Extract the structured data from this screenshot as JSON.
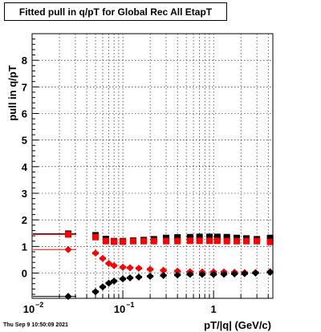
{
  "title": "Fitted pull in q/pT for Global Rec All EtapT",
  "timestamp": "Thu Sep  9 10:50:09 2021",
  "chart_data": {
    "type": "scatter",
    "xlabel": "pT/|q| (GeV/c)",
    "ylabel": "pull in q/pT",
    "xscale": "log",
    "xlim": [
      0.01,
      4.5
    ],
    "ylim": [
      -0.95,
      9.0
    ],
    "grid": true,
    "x_major_ticks": [
      0.01,
      0.1,
      1
    ],
    "x_tick_labels": [
      "10",
      "10",
      "1"
    ],
    "x_tick_exponents": [
      "−2",
      "−1",
      ""
    ],
    "y_ticks": [
      0,
      1,
      2,
      3,
      4,
      5,
      6,
      7,
      8
    ],
    "y_tick_labels": [
      "0",
      "1",
      "2",
      "3",
      "4",
      "5",
      "6",
      "7",
      "8"
    ],
    "series": [
      {
        "color": "#000000",
        "marker": "square",
        "values": [
          {
            "x": 0.025,
            "y": 1.48
          },
          {
            "x": 0.05,
            "y": 1.42
          },
          {
            "x": 0.065,
            "y": 1.28
          },
          {
            "x": 0.08,
            "y": 1.2
          },
          {
            "x": 0.1,
            "y": 1.2
          },
          {
            "x": 0.13,
            "y": 1.22
          },
          {
            "x": 0.17,
            "y": 1.24
          },
          {
            "x": 0.22,
            "y": 1.27
          },
          {
            "x": 0.3,
            "y": 1.32
          },
          {
            "x": 0.4,
            "y": 1.34
          },
          {
            "x": 0.55,
            "y": 1.35
          },
          {
            "x": 0.7,
            "y": 1.36
          },
          {
            "x": 0.9,
            "y": 1.36
          },
          {
            "x": 1.1,
            "y": 1.36
          },
          {
            "x": 1.4,
            "y": 1.35
          },
          {
            "x": 1.8,
            "y": 1.32
          },
          {
            "x": 2.3,
            "y": 1.3
          },
          {
            "x": 3.0,
            "y": 1.27
          },
          {
            "x": 4.2,
            "y": 1.32
          }
        ]
      },
      {
        "color": "#ff0000",
        "marker": "square",
        "values": [
          {
            "x": 0.025,
            "y": 1.45
          },
          {
            "x": 0.05,
            "y": 1.35
          },
          {
            "x": 0.065,
            "y": 1.2
          },
          {
            "x": 0.08,
            "y": 1.18
          },
          {
            "x": 0.1,
            "y": 1.18
          },
          {
            "x": 0.13,
            "y": 1.2
          },
          {
            "x": 0.17,
            "y": 1.2
          },
          {
            "x": 0.22,
            "y": 1.2
          },
          {
            "x": 0.3,
            "y": 1.2
          },
          {
            "x": 0.4,
            "y": 1.2
          },
          {
            "x": 0.55,
            "y": 1.21
          },
          {
            "x": 0.7,
            "y": 1.21
          },
          {
            "x": 0.9,
            "y": 1.21
          },
          {
            "x": 1.1,
            "y": 1.21
          },
          {
            "x": 1.4,
            "y": 1.2
          },
          {
            "x": 1.8,
            "y": 1.2
          },
          {
            "x": 2.3,
            "y": 1.2
          },
          {
            "x": 3.0,
            "y": 1.2
          },
          {
            "x": 4.2,
            "y": 1.17
          }
        ]
      },
      {
        "color": "#ff0000",
        "marker": "diamond",
        "values": [
          {
            "x": 0.025,
            "y": 0.88
          },
          {
            "x": 0.05,
            "y": 0.75
          },
          {
            "x": 0.06,
            "y": 0.55
          },
          {
            "x": 0.07,
            "y": 0.36
          },
          {
            "x": 0.08,
            "y": 0.28
          },
          {
            "x": 0.1,
            "y": 0.22
          },
          {
            "x": 0.12,
            "y": 0.2
          },
          {
            "x": 0.15,
            "y": 0.18
          },
          {
            "x": 0.2,
            "y": 0.14
          },
          {
            "x": 0.28,
            "y": 0.1
          },
          {
            "x": 0.4,
            "y": 0.07
          },
          {
            "x": 0.55,
            "y": 0.05
          },
          {
            "x": 0.75,
            "y": 0.04
          },
          {
            "x": 1.0,
            "y": 0.04
          },
          {
            "x": 1.3,
            "y": 0.04
          },
          {
            "x": 1.7,
            "y": 0.03
          },
          {
            "x": 2.2,
            "y": 0.02
          },
          {
            "x": 2.9,
            "y": 0.02
          },
          {
            "x": 4.2,
            "y": 0.05
          }
        ]
      },
      {
        "color": "#000000",
        "marker": "diamond",
        "values": [
          {
            "x": 0.025,
            "y": -0.88
          },
          {
            "x": 0.05,
            "y": -0.7
          },
          {
            "x": 0.06,
            "y": -0.52
          },
          {
            "x": 0.07,
            "y": -0.38
          },
          {
            "x": 0.08,
            "y": -0.3
          },
          {
            "x": 0.1,
            "y": -0.22
          },
          {
            "x": 0.12,
            "y": -0.18
          },
          {
            "x": 0.15,
            "y": -0.15
          },
          {
            "x": 0.2,
            "y": -0.12
          },
          {
            "x": 0.28,
            "y": -0.09
          },
          {
            "x": 0.4,
            "y": -0.07
          },
          {
            "x": 0.55,
            "y": -0.05
          },
          {
            "x": 0.75,
            "y": -0.05
          },
          {
            "x": 1.0,
            "y": -0.05
          },
          {
            "x": 1.3,
            "y": -0.04
          },
          {
            "x": 1.7,
            "y": -0.03
          },
          {
            "x": 2.2,
            "y": -0.02
          },
          {
            "x": 2.9,
            "y": 0.0
          },
          {
            "x": 4.2,
            "y": 0.03
          }
        ]
      }
    ]
  }
}
